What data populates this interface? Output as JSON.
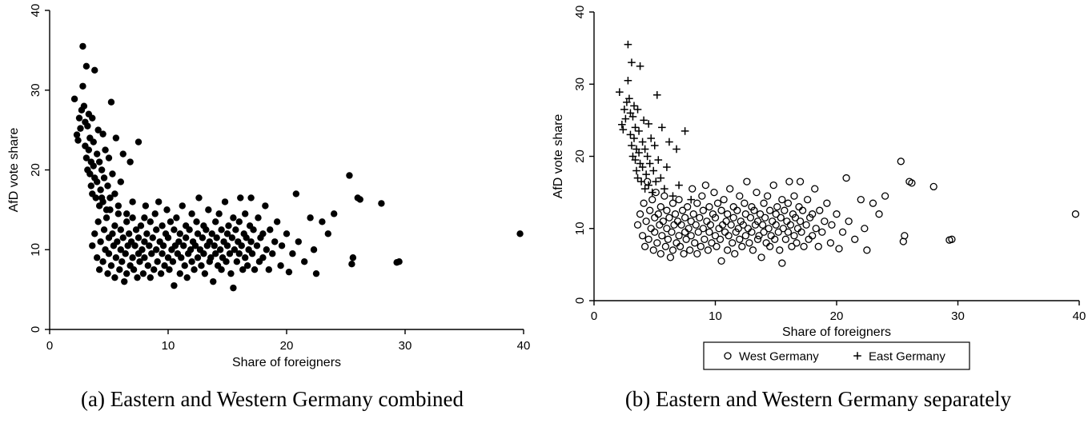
{
  "figure": {
    "captions": {
      "a": "(a) Eastern and Western Germany combined",
      "b": "(b) Eastern and Western Germany separately"
    }
  },
  "colors": {
    "marker": "#000000",
    "axis": "#000000",
    "background": "#ffffff"
  },
  "chart_data": {
    "type": "scatter",
    "points": {
      "west": [
        [
          3.6,
          10.5
        ],
        [
          3.8,
          12.0
        ],
        [
          4.0,
          9.0
        ],
        [
          4.1,
          13.5
        ],
        [
          4.2,
          7.5
        ],
        [
          4.3,
          11.0
        ],
        [
          4.4,
          16.5
        ],
        [
          4.5,
          8.5
        ],
        [
          4.6,
          12.5
        ],
        [
          4.7,
          10.0
        ],
        [
          4.8,
          14.0
        ],
        [
          4.9,
          7.0
        ],
        [
          5.0,
          11.5
        ],
        [
          5.0,
          9.5
        ],
        [
          5.1,
          15.0
        ],
        [
          5.2,
          8.0
        ],
        [
          5.3,
          12.0
        ],
        [
          5.4,
          10.5
        ],
        [
          5.5,
          6.5
        ],
        [
          5.5,
          13.0
        ],
        [
          5.6,
          9.0
        ],
        [
          5.7,
          11.0
        ],
        [
          5.8,
          14.5
        ],
        [
          5.9,
          7.5
        ],
        [
          6.0,
          10.0
        ],
        [
          6.0,
          12.5
        ],
        [
          6.1,
          8.5
        ],
        [
          6.2,
          11.5
        ],
        [
          6.3,
          6.0
        ],
        [
          6.4,
          9.5
        ],
        [
          6.5,
          13.5
        ],
        [
          6.5,
          7.0
        ],
        [
          6.6,
          10.5
        ],
        [
          6.7,
          12.0
        ],
        [
          6.8,
          8.0
        ],
        [
          6.9,
          11.0
        ],
        [
          7.0,
          9.0
        ],
        [
          7.0,
          14.0
        ],
        [
          7.1,
          7.5
        ],
        [
          7.2,
          10.5
        ],
        [
          7.3,
          12.5
        ],
        [
          7.4,
          6.5
        ],
        [
          7.5,
          9.5
        ],
        [
          7.5,
          11.5
        ],
        [
          7.6,
          8.5
        ],
        [
          7.7,
          13.0
        ],
        [
          7.8,
          10.0
        ],
        [
          7.9,
          7.0
        ],
        [
          8.0,
          11.0
        ],
        [
          8.0,
          9.0
        ],
        [
          8.1,
          15.5
        ],
        [
          8.2,
          12.0
        ],
        [
          8.3,
          8.0
        ],
        [
          8.4,
          10.5
        ],
        [
          8.5,
          13.5
        ],
        [
          8.5,
          6.5
        ],
        [
          8.6,
          9.5
        ],
        [
          8.7,
          11.5
        ],
        [
          8.8,
          7.5
        ],
        [
          8.9,
          14.5
        ],
        [
          9.0,
          10.0
        ],
        [
          9.0,
          12.5
        ],
        [
          9.1,
          8.5
        ],
        [
          9.2,
          16.0
        ],
        [
          9.3,
          11.0
        ],
        [
          9.4,
          7.0
        ],
        [
          9.5,
          9.5
        ],
        [
          9.5,
          13.0
        ],
        [
          9.6,
          10.5
        ],
        [
          9.7,
          8.0
        ],
        [
          9.8,
          12.0
        ],
        [
          9.9,
          15.0
        ],
        [
          10.0,
          9.0
        ],
        [
          10.0,
          11.5
        ],
        [
          10.1,
          7.5
        ],
        [
          10.2,
          13.5
        ],
        [
          10.3,
          10.0
        ],
        [
          10.4,
          8.5
        ],
        [
          10.5,
          12.5
        ],
        [
          10.5,
          5.5
        ],
        [
          10.6,
          10.5
        ],
        [
          10.7,
          14.0
        ],
        [
          10.8,
          9.5
        ],
        [
          10.9,
          11.0
        ],
        [
          11.0,
          7.0
        ],
        [
          11.0,
          12.0
        ],
        [
          11.1,
          9.0
        ],
        [
          11.2,
          15.5
        ],
        [
          11.3,
          10.5
        ],
        [
          11.4,
          8.0
        ],
        [
          11.5,
          13.0
        ],
        [
          11.5,
          11.5
        ],
        [
          11.6,
          6.5
        ],
        [
          11.7,
          9.5
        ],
        [
          11.8,
          12.5
        ],
        [
          11.9,
          10.0
        ],
        [
          12.0,
          8.5
        ],
        [
          12.0,
          14.5
        ],
        [
          12.1,
          11.0
        ],
        [
          12.2,
          7.5
        ],
        [
          12.3,
          10.5
        ],
        [
          12.4,
          13.5
        ],
        [
          12.5,
          9.0
        ],
        [
          12.5,
          12.0
        ],
        [
          12.6,
          16.5
        ],
        [
          12.7,
          10.0
        ],
        [
          12.8,
          8.0
        ],
        [
          12.9,
          11.5
        ],
        [
          13.0,
          9.5
        ],
        [
          13.0,
          13.0
        ],
        [
          13.1,
          7.0
        ],
        [
          13.2,
          12.5
        ],
        [
          13.3,
          10.5
        ],
        [
          13.4,
          15.0
        ],
        [
          13.5,
          8.5
        ],
        [
          13.5,
          11.0
        ],
        [
          13.6,
          9.0
        ],
        [
          13.7,
          12.0
        ],
        [
          13.8,
          6.0
        ],
        [
          13.9,
          10.5
        ],
        [
          14.0,
          13.5
        ],
        [
          14.0,
          9.5
        ],
        [
          14.1,
          11.5
        ],
        [
          14.2,
          8.0
        ],
        [
          14.3,
          14.5
        ],
        [
          14.4,
          10.0
        ],
        [
          14.5,
          12.5
        ],
        [
          14.5,
          7.5
        ],
        [
          14.6,
          9.0
        ],
        [
          14.7,
          11.0
        ],
        [
          14.8,
          16.0
        ],
        [
          14.9,
          8.5
        ],
        [
          15.0,
          12.0
        ],
        [
          15.0,
          10.5
        ],
        [
          15.1,
          13.0
        ],
        [
          15.2,
          9.5
        ],
        [
          15.3,
          7.0
        ],
        [
          15.4,
          11.5
        ],
        [
          15.5,
          14.0
        ],
        [
          15.5,
          5.2
        ],
        [
          15.6,
          10.0
        ],
        [
          15.7,
          12.5
        ],
        [
          15.8,
          8.5
        ],
        [
          15.9,
          11.0
        ],
        [
          16.0,
          9.5
        ],
        [
          16.0,
          13.5
        ],
        [
          16.1,
          16.5
        ],
        [
          16.2,
          10.5
        ],
        [
          16.3,
          7.5
        ],
        [
          16.4,
          12.0
        ],
        [
          16.5,
          9.0
        ],
        [
          16.5,
          14.5
        ],
        [
          16.6,
          11.5
        ],
        [
          16.7,
          8.0
        ],
        [
          16.8,
          10.0
        ],
        [
          16.9,
          13.0
        ],
        [
          17.0,
          16.5
        ],
        [
          17.0,
          11.0
        ],
        [
          17.1,
          9.5
        ],
        [
          17.2,
          12.5
        ],
        [
          17.3,
          7.5
        ],
        [
          17.5,
          10.5
        ],
        [
          17.6,
          14.0
        ],
        [
          17.7,
          8.5
        ],
        [
          17.8,
          11.5
        ],
        [
          18.0,
          9.0
        ],
        [
          18.0,
          12.0
        ],
        [
          18.2,
          15.5
        ],
        [
          18.3,
          10.0
        ],
        [
          18.5,
          7.5
        ],
        [
          18.6,
          12.5
        ],
        [
          18.8,
          9.5
        ],
        [
          19.0,
          11.0
        ],
        [
          19.2,
          13.5
        ],
        [
          19.5,
          8.0
        ],
        [
          19.6,
          10.5
        ],
        [
          20.0,
          12.0
        ],
        [
          20.2,
          7.2
        ],
        [
          20.5,
          9.5
        ],
        [
          20.8,
          17.0
        ],
        [
          21.0,
          11.0
        ],
        [
          21.5,
          8.5
        ],
        [
          22.0,
          14.0
        ],
        [
          22.3,
          10.0
        ],
        [
          22.5,
          7.0
        ],
        [
          23.0,
          13.5
        ],
        [
          23.5,
          12.0
        ],
        [
          24.0,
          14.5
        ],
        [
          25.3,
          19.3
        ],
        [
          25.5,
          8.2
        ],
        [
          25.6,
          9.0
        ],
        [
          26.0,
          16.5
        ],
        [
          26.2,
          16.3
        ],
        [
          28.0,
          15.8
        ],
        [
          29.3,
          8.4
        ],
        [
          29.5,
          8.5
        ],
        [
          39.7,
          12.0
        ]
      ],
      "east": [
        [
          2.1,
          28.9
        ],
        [
          2.3,
          24.4
        ],
        [
          2.4,
          23.7
        ],
        [
          2.5,
          26.5
        ],
        [
          2.6,
          25.2
        ],
        [
          2.7,
          27.5
        ],
        [
          2.8,
          35.5
        ],
        [
          2.8,
          30.5
        ],
        [
          2.9,
          28.0
        ],
        [
          3.0,
          26.0
        ],
        [
          3.0,
          23.0
        ],
        [
          3.1,
          21.5
        ],
        [
          3.1,
          33.0
        ],
        [
          3.2,
          25.5
        ],
        [
          3.2,
          20.0
        ],
        [
          3.3,
          27.0
        ],
        [
          3.3,
          22.5
        ],
        [
          3.4,
          19.5
        ],
        [
          3.4,
          24.0
        ],
        [
          3.5,
          21.0
        ],
        [
          3.5,
          18.0
        ],
        [
          3.6,
          26.5
        ],
        [
          3.6,
          17.0
        ],
        [
          3.7,
          20.5
        ],
        [
          3.7,
          23.5
        ],
        [
          3.8,
          19.0
        ],
        [
          3.8,
          32.5
        ],
        [
          3.9,
          16.5
        ],
        [
          4.0,
          22.0
        ],
        [
          4.0,
          18.5
        ],
        [
          4.1,
          25.0
        ],
        [
          4.2,
          15.5
        ],
        [
          4.2,
          21.0
        ],
        [
          4.3,
          17.5
        ],
        [
          4.4,
          20.0
        ],
        [
          4.5,
          24.5
        ],
        [
          4.5,
          16.0
        ],
        [
          4.6,
          19.0
        ],
        [
          4.7,
          22.5
        ],
        [
          4.8,
          15.0
        ],
        [
          4.9,
          18.0
        ],
        [
          5.0,
          21.5
        ],
        [
          5.1,
          16.5
        ],
        [
          5.2,
          28.5
        ],
        [
          5.3,
          19.5
        ],
        [
          5.5,
          17.0
        ],
        [
          5.6,
          24.0
        ],
        [
          5.8,
          15.5
        ],
        [
          6.0,
          18.5
        ],
        [
          6.2,
          22.0
        ],
        [
          6.5,
          14.5
        ],
        [
          6.8,
          21.0
        ],
        [
          7.0,
          16.0
        ],
        [
          7.5,
          23.5
        ],
        [
          8.0,
          14.0
        ]
      ]
    },
    "charts": [
      {
        "id": "chart-a",
        "type": "scatter",
        "title": "",
        "xlabel": "Share of foreigners",
        "ylabel": "AfD vote share",
        "xlim": [
          0,
          40
        ],
        "ylim": [
          0,
          40
        ],
        "xticks": [
          0,
          10,
          20,
          30,
          40
        ],
        "yticks": [
          0,
          10,
          20,
          30,
          40
        ],
        "grid": false,
        "series": [
          {
            "marker": "filled-circle",
            "data": [
              "west",
              "east"
            ]
          }
        ],
        "legend": null
      },
      {
        "id": "chart-b",
        "type": "scatter",
        "title": "",
        "xlabel": "Share of foreigners",
        "ylabel": "AfD vote share",
        "xlim": [
          0,
          40
        ],
        "ylim": [
          0,
          40
        ],
        "xticks": [
          0,
          10,
          20,
          30,
          40
        ],
        "yticks": [
          0,
          10,
          20,
          30,
          40
        ],
        "grid": false,
        "series": [
          {
            "name": "West Germany",
            "marker": "open-circle",
            "data": [
              "west"
            ]
          },
          {
            "name": "East Germany",
            "marker": "plus",
            "data": [
              "east"
            ]
          }
        ],
        "legend": {
          "position": "bottom",
          "entries": [
            {
              "label": "West Germany",
              "marker": "open-circle"
            },
            {
              "label": "East Germany",
              "marker": "plus"
            }
          ]
        }
      }
    ]
  }
}
